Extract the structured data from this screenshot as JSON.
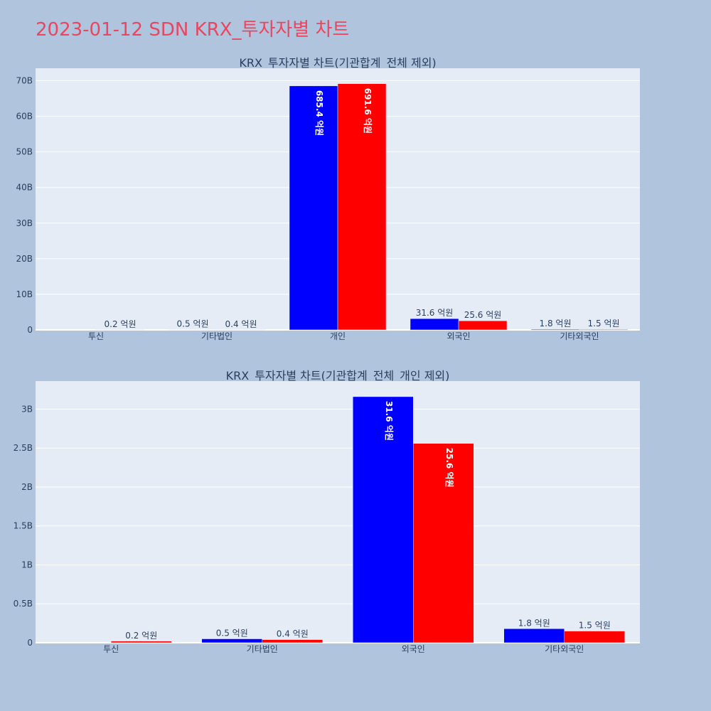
{
  "title": "2023-01-12 SDN KRX_투자자별 차트",
  "colors": {
    "page_bg": "#b0c4de",
    "plot_bg": "#e5ecf6",
    "grid": "#ffffff",
    "title": "#e8475f",
    "text": "#2a3f5f"
  },
  "chart_data": [
    {
      "type": "bar",
      "title": "KRX_투자자별 차트(기관합계_전체 제외)",
      "categories": [
        "투신",
        "기타법인",
        "개인",
        "외국인",
        "기타외국인"
      ],
      "series": [
        {
          "color": "#0000ff",
          "values": [
            0,
            50000000,
            68540000000,
            3160000000,
            180000000
          ],
          "labels": [
            "",
            "0.5 억원",
            "685.4 억원",
            "31.6 억원",
            "1.8 억원"
          ]
        },
        {
          "color": "#ff0000",
          "values": [
            20000000,
            40000000,
            69160000000,
            2560000000,
            150000000
          ],
          "labels": [
            "0.2 억원",
            "0.4 억원",
            "691.6 억원",
            "25.6 억원",
            "1.5 억원"
          ]
        }
      ],
      "ylim": [
        0,
        73500000000
      ],
      "yticks": [
        0,
        10000000000,
        20000000000,
        30000000000,
        40000000000,
        50000000000,
        60000000000,
        70000000000
      ],
      "yticklabels": [
        "0",
        "10B",
        "20B",
        "30B",
        "40B",
        "50B",
        "60B",
        "70B"
      ],
      "grid": true
    },
    {
      "type": "bar",
      "title": "KRX_투자자별 차트(기관합계_전체_개인 제외)",
      "categories": [
        "투신",
        "기타법인",
        "외국인",
        "기타외국인"
      ],
      "series": [
        {
          "color": "#0000ff",
          "values": [
            0,
            50000000,
            3160000000,
            180000000
          ],
          "labels": [
            "",
            "0.5 억원",
            "31.6 억원",
            "1.8 억원"
          ]
        },
        {
          "color": "#ff0000",
          "values": [
            20000000,
            40000000,
            2560000000,
            150000000
          ],
          "labels": [
            "0.2 억원",
            "0.4 억원",
            "25.6 억원",
            "1.5 억원"
          ]
        }
      ],
      "ylim": [
        0,
        3360000000
      ],
      "yticks": [
        0,
        500000000,
        1000000000,
        1500000000,
        2000000000,
        2500000000,
        3000000000
      ],
      "yticklabels": [
        "0",
        "0.5B",
        "1B",
        "1.5B",
        "2B",
        "2.5B",
        "3B"
      ],
      "grid": true
    }
  ]
}
